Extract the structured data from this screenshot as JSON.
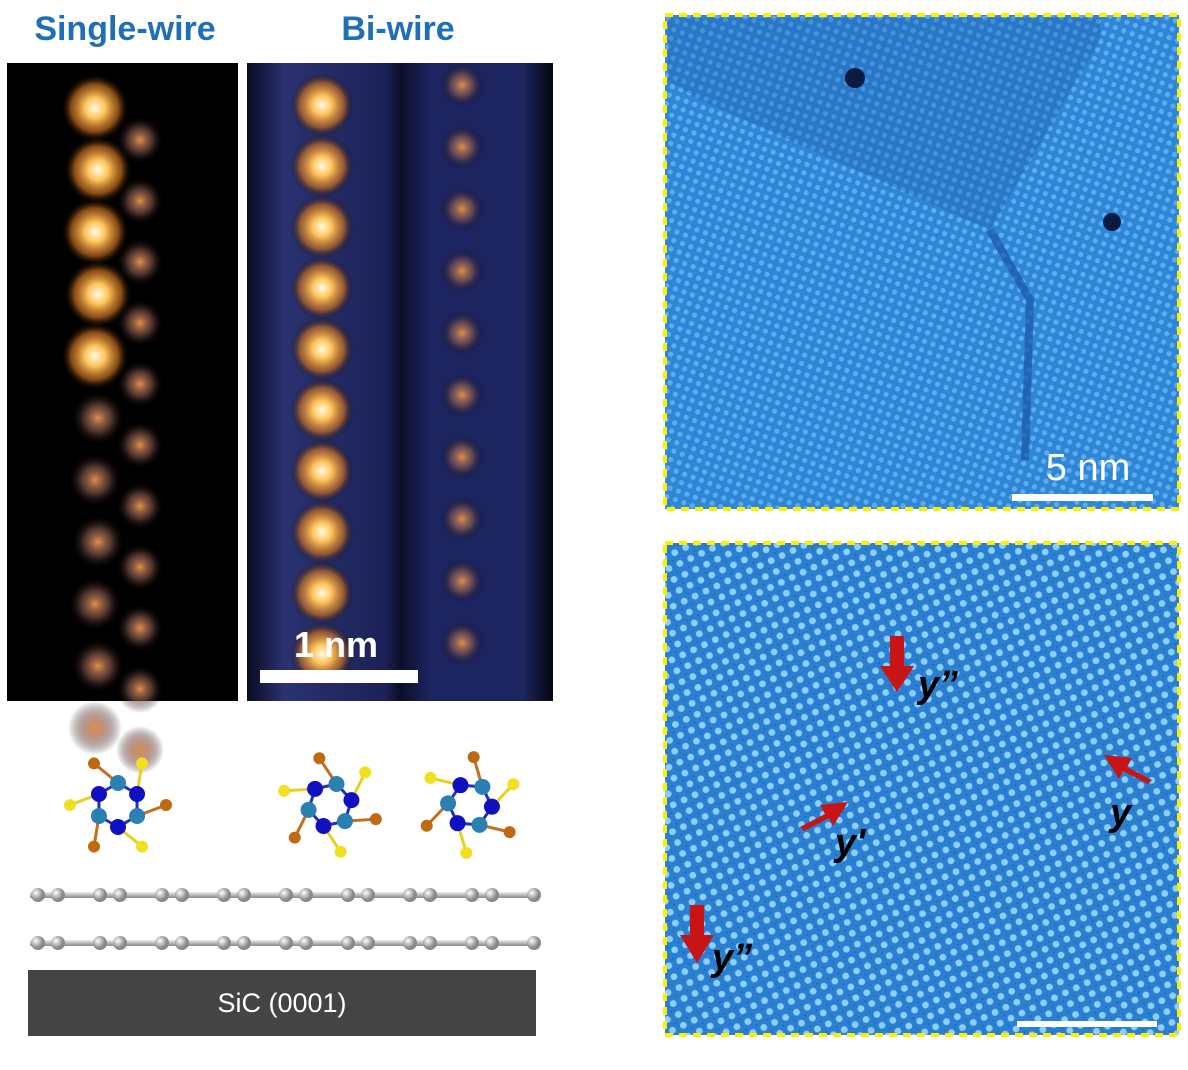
{
  "panels": {
    "single_wire": {
      "title": "Single-wire"
    },
    "bi_wire": {
      "title": "Bi-wire",
      "scale_bar": "1 nm"
    },
    "model": {
      "substrate": "SiC (0001)"
    },
    "large_scan": {
      "scale_bar": "5 nm"
    },
    "zoom_scan": {
      "labels": [
        "y”",
        "y'",
        "y",
        "y”"
      ]
    }
  }
}
